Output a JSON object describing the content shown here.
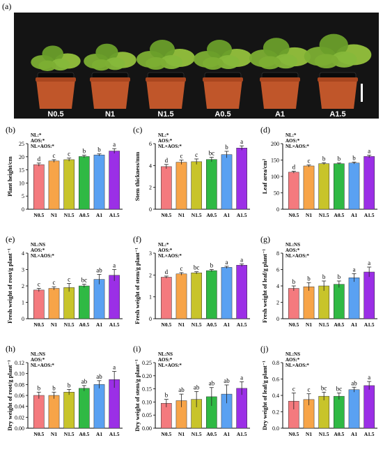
{
  "panel_a": {
    "label": "(a)",
    "pot_labels": [
      "N0.5",
      "N1",
      "N1.5",
      "A0.5",
      "A1",
      "A1.5"
    ]
  },
  "colors": [
    "#f47a7e",
    "#f7a448",
    "#c8c42a",
    "#2fb944",
    "#5aa1f2",
    "#9b2fe6"
  ],
  "chart_data": [
    {
      "label": "(b)",
      "type": "bar",
      "ylabel": "Plant height/cm",
      "categories": [
        "N0.5",
        "N1",
        "N1.5",
        "A0.5",
        "A1",
        "A1.5"
      ],
      "values": [
        17.0,
        18.4,
        18.9,
        20.1,
        20.7,
        22.2
      ],
      "errors": [
        0.6,
        0.5,
        0.6,
        0.5,
        0.4,
        0.9
      ],
      "letters": [
        "d",
        "c",
        "c",
        "b",
        "b",
        "a"
      ],
      "ylim": [
        0,
        25
      ],
      "yticks": [
        0,
        5,
        10,
        15,
        20,
        25
      ],
      "stats": [
        "NL:*",
        "AOS:*",
        "NL×AOS:*"
      ]
    },
    {
      "label": "(c)",
      "type": "bar",
      "ylabel": "Stem thickness/mm",
      "categories": [
        "N0.5",
        "N1",
        "N1.5",
        "A0.5",
        "A1",
        "A1.5"
      ],
      "values": [
        3.9,
        4.3,
        4.35,
        4.55,
        5.0,
        5.6
      ],
      "errors": [
        0.2,
        0.2,
        0.25,
        0.2,
        0.3,
        0.2
      ],
      "letters": [
        "d",
        "c",
        "c",
        "bc",
        "b",
        "a"
      ],
      "ylim": [
        0,
        6
      ],
      "yticks": [
        0,
        2,
        4,
        6
      ],
      "stats": [
        "NL:*",
        "AOS:*",
        "NL×AOS:*"
      ]
    },
    {
      "label": "(d)",
      "type": "bar",
      "ylabel": "Leaf area/cm²",
      "categories": [
        "N0.5",
        "N1",
        "N1.5",
        "A0.5",
        "A1",
        "A1.5"
      ],
      "values": [
        113,
        132,
        139,
        139,
        141,
        161
      ],
      "errors": [
        3,
        3,
        3,
        2,
        3,
        4
      ],
      "letters": [
        "d",
        "c",
        "b",
        "b",
        "b",
        "a"
      ],
      "ylim": [
        0,
        200
      ],
      "yticks": [
        0,
        50,
        100,
        150,
        200
      ],
      "stats": [
        "NL:*",
        "AOS:*",
        "NL×AOS:*"
      ]
    },
    {
      "label": "(e)",
      "type": "bar",
      "ylabel": "Fresh weight of root/g plant⁻¹",
      "categories": [
        "N0.5",
        "N1",
        "N1.5",
        "A0.5",
        "A1",
        "A1.5"
      ],
      "values": [
        1.75,
        1.85,
        1.9,
        2.0,
        2.4,
        2.65
      ],
      "errors": [
        0.1,
        0.1,
        0.25,
        0.1,
        0.3,
        0.35
      ],
      "letters": [
        "c",
        "c",
        "c",
        "bc",
        "ab",
        "a"
      ],
      "ylim": [
        0,
        4
      ],
      "yticks": [
        0,
        1,
        2,
        3,
        4
      ],
      "stats": [
        "NL:NS",
        "AOS:*",
        "NL×AOS:*"
      ]
    },
    {
      "label": "(f)",
      "type": "bar",
      "ylabel": "Fresh weight of stem/g plant⁻¹",
      "categories": [
        "N0.5",
        "N1",
        "N1.5",
        "A0.5",
        "A1",
        "A1.5"
      ],
      "values": [
        1.9,
        2.05,
        2.1,
        2.2,
        2.35,
        2.45
      ],
      "errors": [
        0.05,
        0.06,
        0.05,
        0.05,
        0.05,
        0.06
      ],
      "letters": [
        "d",
        "c",
        "bc",
        "b",
        "a",
        "a"
      ],
      "ylim": [
        0,
        3
      ],
      "yticks": [
        0,
        1,
        2,
        3
      ],
      "stats": [
        "NL:*",
        "AOS:*",
        "NL×AOS:*"
      ]
    },
    {
      "label": "(g)",
      "type": "bar",
      "ylabel": "Fresh weight of leaf/g plant⁻¹",
      "categories": [
        "N0.5",
        "N1",
        "N1.5",
        "A0.5",
        "A1",
        "A1.5"
      ],
      "values": [
        3.7,
        3.9,
        4.0,
        4.2,
        5.0,
        5.7
      ],
      "errors": [
        0.3,
        0.5,
        0.6,
        0.4,
        0.5,
        0.6
      ],
      "letters": [
        "b",
        "b",
        "b",
        "b",
        "a",
        "a"
      ],
      "ylim": [
        0,
        8
      ],
      "yticks": [
        0,
        2,
        4,
        6,
        8
      ],
      "stats": [
        "NL:NS",
        "AOS:*",
        "NL×AOS:*"
      ]
    },
    {
      "label": "(h)",
      "type": "bar",
      "ylabel": "Dry weight of root/g plant⁻¹",
      "categories": [
        "N0.5",
        "N1",
        "N1.5",
        "A0.5",
        "A1",
        "A1.5"
      ],
      "values": [
        0.06,
        0.06,
        0.066,
        0.073,
        0.08,
        0.089
      ],
      "errors": [
        0.006,
        0.006,
        0.005,
        0.005,
        0.007,
        0.015
      ],
      "letters": [
        "b",
        "b",
        "b",
        "ab",
        "ab",
        "a"
      ],
      "ylim": [
        0,
        0.12
      ],
      "yticks": [
        0,
        0.02,
        0.04,
        0.06,
        0.08,
        0.1,
        0.12
      ],
      "stats": [
        "NL:NS",
        "AOS:*",
        "NL×AOS:*"
      ]
    },
    {
      "label": "(i)",
      "type": "bar",
      "ylabel": "Dry weight of stem/g plant⁻¹",
      "categories": [
        "N0.5",
        "N1",
        "N1.5",
        "A0.5",
        "A1",
        "A1.5"
      ],
      "values": [
        0.095,
        0.105,
        0.11,
        0.12,
        0.13,
        0.152
      ],
      "errors": [
        0.015,
        0.025,
        0.03,
        0.035,
        0.035,
        0.025
      ],
      "letters": [
        "b",
        "ab",
        "ab",
        "ab",
        "ab",
        "a"
      ],
      "ylim": [
        0,
        0.25
      ],
      "yticks": [
        0,
        0.05,
        0.1,
        0.15,
        0.2,
        0.25
      ],
      "stats": [
        "NL:NS",
        "AOS:*",
        "NL×AOS:*"
      ]
    },
    {
      "label": "(j)",
      "type": "bar",
      "ylabel": "Dry weight of leaf/g plant⁻¹",
      "categories": [
        "N0.5",
        "N1",
        "N1.5",
        "A0.5",
        "A1",
        "A1.5"
      ],
      "values": [
        0.33,
        0.35,
        0.39,
        0.39,
        0.47,
        0.52
      ],
      "errors": [
        0.1,
        0.07,
        0.05,
        0.04,
        0.03,
        0.05
      ],
      "letters": [
        "c",
        "c",
        "bc",
        "bc",
        "ab",
        "a"
      ],
      "ylim": [
        0,
        0.8
      ],
      "yticks": [
        0,
        0.2,
        0.4,
        0.6,
        0.8
      ],
      "stats": [
        "NL:NS",
        "AOS:*",
        "NL×AOS:*"
      ]
    }
  ]
}
